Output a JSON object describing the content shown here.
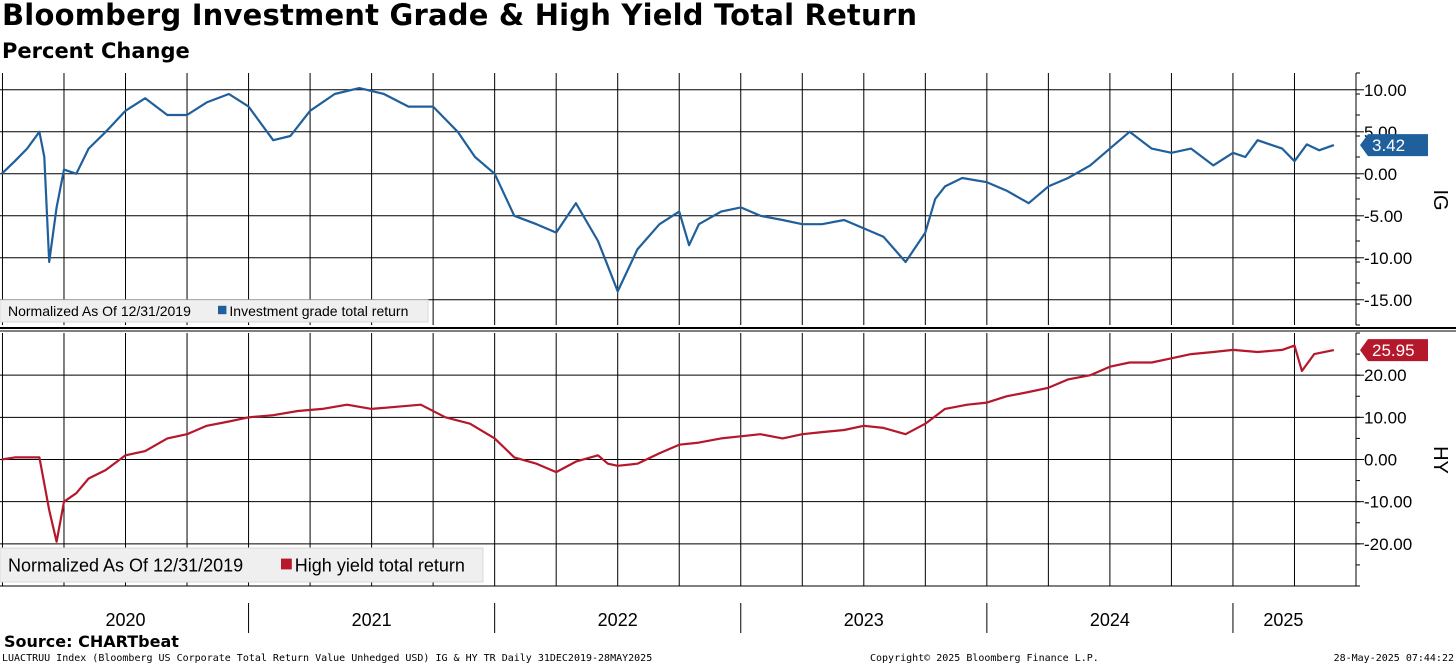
{
  "title": "Bloomberg Investment Grade & High Yield Total Return",
  "subtitle": "Percent Change",
  "source": "Source: CHARTbeat",
  "footer": {
    "left": "LUACTRUU Index (Bloomberg US Corporate Total Return Value Unhedged USD) IG & HY TR  Daily 31DEC2019-28MAY2025",
    "center": "Copyright© 2025 Bloomberg Finance L.P.",
    "right": "28-May-2025 07:44:22"
  },
  "colors": {
    "ig": "#1f5f9b",
    "hy": "#b5172b",
    "grid": "#000000"
  },
  "chart_data": [
    {
      "type": "line",
      "panel": "IG",
      "axis_label": "IG",
      "legend_prefix": "Normalized As Of 12/31/2019",
      "series_name": "Investment grade total return",
      "last_value": "3.42",
      "ylim": [
        -18,
        12
      ],
      "yticks": [
        10,
        5,
        0,
        -5,
        -10,
        -15
      ],
      "ytick_labels": [
        "10.00",
        "5.00",
        "0.00",
        "-5.00",
        "-10.00",
        "-15.00"
      ],
      "x": [
        2019.997,
        2020.05,
        2020.1,
        2020.15,
        2020.17,
        2020.19,
        2020.22,
        2020.25,
        2020.3,
        2020.35,
        2020.42,
        2020.5,
        2020.58,
        2020.67,
        2020.75,
        2020.83,
        2020.92,
        2021.0,
        2021.1,
        2021.17,
        2021.25,
        2021.35,
        2021.45,
        2021.55,
        2021.65,
        2021.75,
        2021.85,
        2021.92,
        2022.0,
        2022.08,
        2022.17,
        2022.25,
        2022.33,
        2022.42,
        2022.46,
        2022.5,
        2022.58,
        2022.67,
        2022.75,
        2022.79,
        2022.83,
        2022.92,
        2023.0,
        2023.08,
        2023.17,
        2023.25,
        2023.33,
        2023.42,
        2023.5,
        2023.58,
        2023.67,
        2023.75,
        2023.79,
        2023.83,
        2023.9,
        2024.0,
        2024.08,
        2024.17,
        2024.25,
        2024.33,
        2024.42,
        2024.5,
        2024.58,
        2024.67,
        2024.75,
        2024.83,
        2024.92,
        2025.0,
        2025.05,
        2025.1,
        2025.15,
        2025.2,
        2025.25,
        2025.3,
        2025.35,
        2025.41
      ],
      "values": [
        0.0,
        1.5,
        3.0,
        5.0,
        2.0,
        -10.5,
        -4.0,
        0.5,
        0.0,
        3.0,
        5.0,
        7.5,
        9.0,
        7.0,
        7.0,
        8.5,
        9.5,
        8.0,
        4.0,
        4.5,
        7.5,
        9.5,
        10.2,
        9.5,
        8.0,
        8.0,
        5.0,
        2.0,
        0.0,
        -5.0,
        -6.0,
        -7.0,
        -3.5,
        -8.0,
        -11.0,
        -14.0,
        -9.0,
        -6.0,
        -4.5,
        -8.5,
        -6.0,
        -4.5,
        -4.0,
        -5.0,
        -5.5,
        -6.0,
        -6.0,
        -5.5,
        -6.5,
        -7.5,
        -10.5,
        -7.0,
        -3.0,
        -1.5,
        -0.5,
        -1.0,
        -2.0,
        -3.5,
        -1.5,
        -0.5,
        1.0,
        3.0,
        5.0,
        3.0,
        2.5,
        3.0,
        1.0,
        2.5,
        2.0,
        4.0,
        3.5,
        3.0,
        1.5,
        3.5,
        2.8,
        3.42
      ]
    },
    {
      "type": "line",
      "panel": "HY",
      "axis_label": "HY",
      "legend_prefix": "Normalized As Of 12/31/2019",
      "series_name": "High yield total return",
      "last_value": "25.95",
      "ylim": [
        -30,
        30
      ],
      "yticks": [
        20,
        10,
        0,
        -10,
        -20
      ],
      "ytick_labels": [
        "20.00",
        "10.00",
        "0.00",
        "-10.00",
        "-20.00"
      ],
      "x": [
        2019.997,
        2020.05,
        2020.1,
        2020.15,
        2020.19,
        2020.22,
        2020.25,
        2020.3,
        2020.35,
        2020.42,
        2020.5,
        2020.58,
        2020.67,
        2020.75,
        2020.83,
        2020.92,
        2021.0,
        2021.1,
        2021.2,
        2021.3,
        2021.4,
        2021.5,
        2021.6,
        2021.7,
        2021.8,
        2021.9,
        2022.0,
        2022.08,
        2022.17,
        2022.25,
        2022.33,
        2022.42,
        2022.46,
        2022.5,
        2022.58,
        2022.67,
        2022.75,
        2022.83,
        2022.92,
        2023.0,
        2023.08,
        2023.17,
        2023.25,
        2023.33,
        2023.42,
        2023.5,
        2023.58,
        2023.67,
        2023.75,
        2023.83,
        2023.92,
        2024.0,
        2024.08,
        2024.17,
        2024.25,
        2024.33,
        2024.42,
        2024.5,
        2024.58,
        2024.67,
        2024.75,
        2024.83,
        2024.92,
        2025.0,
        2025.1,
        2025.2,
        2025.25,
        2025.28,
        2025.33,
        2025.41
      ],
      "values": [
        0.0,
        0.5,
        0.5,
        0.5,
        -12.0,
        -19.5,
        -10.0,
        -8.0,
        -4.5,
        -2.5,
        1.0,
        2.0,
        5.0,
        6.0,
        8.0,
        9.0,
        10.0,
        10.5,
        11.5,
        12.0,
        13.0,
        12.0,
        12.5,
        13.0,
        10.0,
        8.5,
        5.0,
        0.5,
        -1.0,
        -3.0,
        -0.5,
        1.0,
        -1.0,
        -1.5,
        -1.0,
        1.5,
        3.5,
        4.0,
        5.0,
        5.5,
        6.0,
        5.0,
        6.0,
        6.5,
        7.0,
        8.0,
        7.5,
        6.0,
        8.5,
        12.0,
        13.0,
        13.5,
        15.0,
        16.0,
        17.0,
        19.0,
        20.0,
        22.0,
        23.0,
        23.0,
        24.0,
        25.0,
        25.5,
        26.0,
        25.5,
        26.0,
        27.0,
        21.0,
        25.0,
        25.95
      ]
    }
  ],
  "x_axis": {
    "labels": [
      "2020",
      "2021",
      "2022",
      "2023",
      "2024",
      "2025"
    ],
    "domain": [
      2019.99,
      2025.5
    ]
  }
}
